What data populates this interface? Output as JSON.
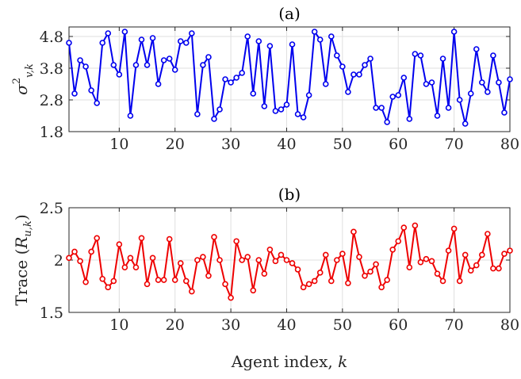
{
  "chart_data": [
    {
      "type": "line",
      "title": "(a)",
      "ylabel": "σ²_{v,k}",
      "ylabel_parts": {
        "sym": "σ",
        "sup": "2",
        "sub": "v,k"
      },
      "xlabel": "",
      "xlim": [
        1,
        80
      ],
      "ylim": [
        1.8,
        5.1
      ],
      "xticks": [
        10,
        20,
        30,
        40,
        50,
        60,
        70,
        80
      ],
      "xtick_labels": [
        "10",
        "20",
        "30",
        "40",
        "50",
        "60",
        "70",
        "80"
      ],
      "yticks": [
        1.8,
        2.8,
        3.8,
        4.8
      ],
      "ytick_labels": [
        "1.8",
        "2.8",
        "3.8",
        "4.8"
      ],
      "grid": true,
      "color": "#0000ee",
      "marker": "circle",
      "series": [
        {
          "x": [
            1,
            2,
            3,
            4,
            5,
            6,
            7,
            8,
            9,
            10,
            11,
            12,
            13,
            14,
            15,
            16,
            17,
            18,
            19,
            20,
            21,
            22,
            23,
            24,
            25,
            26,
            27,
            28,
            29,
            30,
            31,
            32,
            33,
            34,
            35,
            36,
            37,
            38,
            39,
            40,
            41,
            42,
            43,
            44,
            45,
            46,
            47,
            48,
            49,
            50,
            51,
            52,
            53,
            54,
            55,
            56,
            57,
            58,
            59,
            60,
            61,
            62,
            63,
            64,
            65,
            66,
            67,
            68,
            69,
            70,
            71,
            72,
            73,
            74,
            75,
            76,
            77,
            78,
            79,
            80
          ],
          "values": [
            4.6,
            3.0,
            4.05,
            3.85,
            3.1,
            2.7,
            4.6,
            4.9,
            3.9,
            3.6,
            4.95,
            2.3,
            3.9,
            4.7,
            3.9,
            4.75,
            3.3,
            4.05,
            4.1,
            3.75,
            4.65,
            4.6,
            4.9,
            2.35,
            3.9,
            4.15,
            2.2,
            2.5,
            3.45,
            3.35,
            3.5,
            3.65,
            4.8,
            3.0,
            4.65,
            2.6,
            4.5,
            2.45,
            2.5,
            2.65,
            4.55,
            2.35,
            2.25,
            2.95,
            4.95,
            4.7,
            3.3,
            4.8,
            4.2,
            3.85,
            3.05,
            3.6,
            3.6,
            3.9,
            4.1,
            2.55,
            2.55,
            2.1,
            2.9,
            2.95,
            3.5,
            2.2,
            4.25,
            4.2,
            3.3,
            3.35,
            2.3,
            4.1,
            2.55,
            4.95,
            2.8,
            2.05,
            3.0,
            4.4,
            3.35,
            3.05,
            4.2,
            3.35,
            2.4,
            3.45
          ]
        }
      ]
    },
    {
      "type": "line",
      "title": "(b)",
      "ylabel": "Trace (R_{u,k})",
      "ylabel_parts": {
        "pre": "Trace (",
        "sym": "R",
        "sub": "u,k",
        "post": ")"
      },
      "xlabel": "Agent index, k",
      "xlabel_parts": {
        "pre": "Agent index, ",
        "sym": "k"
      },
      "xlim": [
        1,
        80
      ],
      "ylim": [
        1.5,
        2.5
      ],
      "xticks": [
        10,
        20,
        30,
        40,
        50,
        60,
        70,
        80
      ],
      "xtick_labels": [
        "10",
        "20",
        "30",
        "40",
        "50",
        "60",
        "70",
        "80"
      ],
      "yticks": [
        1.5,
        2.0,
        2.5
      ],
      "ytick_labels": [
        "1.5",
        "2",
        "2.5"
      ],
      "grid": true,
      "color": "#ee0000",
      "marker": "circle",
      "series": [
        {
          "x": [
            1,
            2,
            3,
            4,
            5,
            6,
            7,
            8,
            9,
            10,
            11,
            12,
            13,
            14,
            15,
            16,
            17,
            18,
            19,
            20,
            21,
            22,
            23,
            24,
            25,
            26,
            27,
            28,
            29,
            30,
            31,
            32,
            33,
            34,
            35,
            36,
            37,
            38,
            39,
            40,
            41,
            42,
            43,
            44,
            45,
            46,
            47,
            48,
            49,
            50,
            51,
            52,
            53,
            54,
            55,
            56,
            57,
            58,
            59,
            60,
            61,
            62,
            63,
            64,
            65,
            66,
            67,
            68,
            69,
            70,
            71,
            72,
            73,
            74,
            75,
            76,
            77,
            78,
            79,
            80
          ],
          "values": [
            2.02,
            2.08,
            1.99,
            1.79,
            2.08,
            2.21,
            1.82,
            1.74,
            1.8,
            2.15,
            1.93,
            2.02,
            1.93,
            2.21,
            1.77,
            2.02,
            1.81,
            1.81,
            2.2,
            1.81,
            1.97,
            1.8,
            1.7,
            2.0,
            2.03,
            1.85,
            2.22,
            2.0,
            1.77,
            1.64,
            2.18,
            2.0,
            2.03,
            1.71,
            2.0,
            1.87,
            2.1,
            1.99,
            2.05,
            2.0,
            1.97,
            1.91,
            1.74,
            1.77,
            1.8,
            1.88,
            2.05,
            1.8,
            2.0,
            2.06,
            1.78,
            2.27,
            2.03,
            1.85,
            1.89,
            1.96,
            1.74,
            1.81,
            2.1,
            2.18,
            2.31,
            1.93,
            2.33,
            1.98,
            2.01,
            1.99,
            1.87,
            1.8,
            2.09,
            2.3,
            1.8,
            2.05,
            1.9,
            1.95,
            2.05,
            2.25,
            1.92,
            1.92,
            2.06,
            2.09
          ]
        }
      ]
    }
  ]
}
